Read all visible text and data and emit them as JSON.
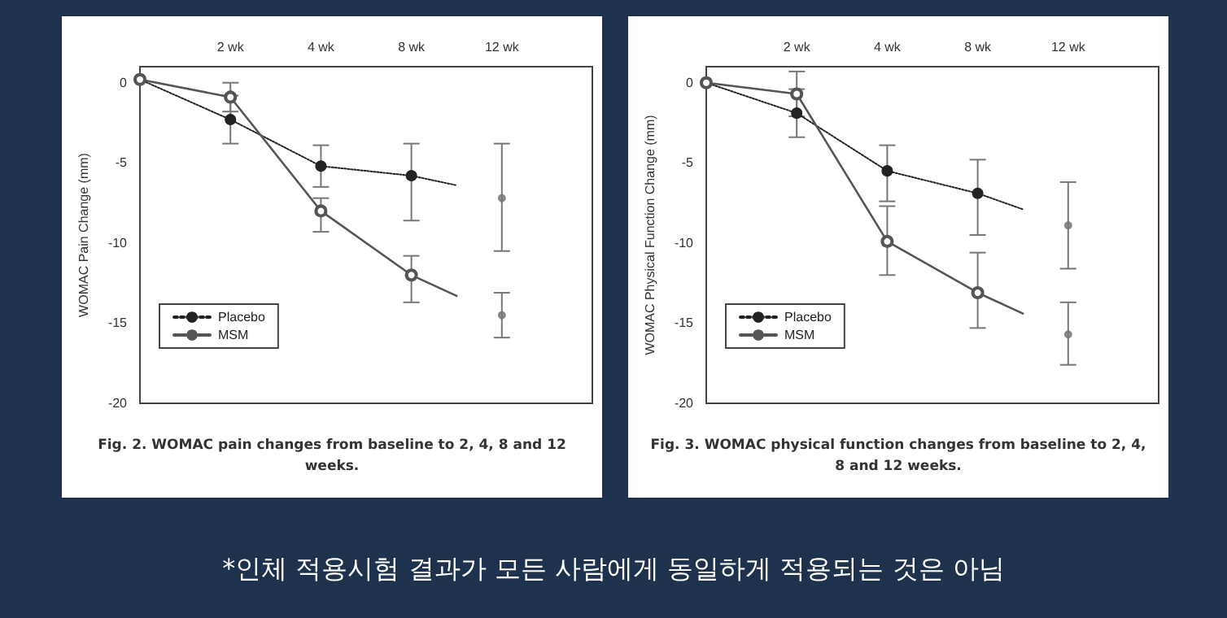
{
  "chart_data": [
    {
      "type": "line",
      "title": "Fig. 2. WOMAC pain changes from baseline to 2, 4, 8 and 12 weeks.",
      "ylabel": "WOMAC Pain Change (mm)",
      "categories": [
        null,
        null,
        "2 wk",
        null,
        "4 wk",
        null,
        "8 wk",
        null,
        "12 wk",
        null,
        null
      ],
      "ylim": [
        -20,
        1
      ],
      "yticks": [
        0,
        -5,
        -10,
        -15,
        -20
      ],
      "grid": false,
      "legend": "bottom left",
      "series": [
        {
          "name": "Placebo",
          "color": "#222222",
          "line_style": "dotted",
          "marker": "circle",
          "values": [
            0.2,
            null,
            -2.3,
            null,
            -5.2,
            null,
            -5.8,
            -6.4,
            null,
            null,
            null
          ],
          "errors": [
            null,
            null,
            [
              -3.8,
              -0.8
            ],
            null,
            [
              -6.5,
              -3.9
            ],
            null,
            [
              -8.6,
              -3.8
            ],
            null,
            null,
            null,
            null
          ]
        },
        {
          "name": "MSM",
          "color": "#555555",
          "line_style": "solid",
          "marker": "open_circle",
          "values": [
            0.2,
            null,
            -0.9,
            null,
            -8.0,
            null,
            -12.0,
            -13.3,
            null,
            null,
            null
          ],
          "errors": [
            null,
            null,
            [
              -1.8,
              0
            ],
            null,
            [
              -9.3,
              -7.2
            ],
            null,
            [
              -13.7,
              -10.8
            ],
            null,
            null,
            null,
            null
          ]
        },
        {
          "type": "scatter",
          "color": "#777777",
          "marker": "circle",
          "values": [
            null,
            null,
            null,
            null,
            null,
            null,
            null,
            null,
            -7.2,
            null,
            null
          ],
          "errors": [
            null,
            null,
            null,
            null,
            null,
            null,
            null,
            null,
            [
              -10.5,
              -3.8
            ],
            null,
            null
          ]
        },
        {
          "type": "scatter",
          "color": "#777777",
          "marker": "circle",
          "values": [
            null,
            null,
            null,
            null,
            null,
            null,
            null,
            null,
            -14.5,
            null,
            null
          ],
          "errors": [
            null,
            null,
            null,
            null,
            null,
            null,
            null,
            null,
            [
              -15.9,
              -13.1
            ],
            null,
            null
          ]
        }
      ]
    },
    {
      "type": "line",
      "title": "Fig. 3. WOMAC physical function changes from baseline to 2, 4, 8 and 12 weeks.",
      "ylabel": "WOMAC Physical Function Change (mm)",
      "categories": [
        null,
        null,
        "2 wk",
        null,
        "4 wk",
        null,
        "8 wk",
        null,
        "12 wk",
        null,
        null
      ],
      "ylim": [
        -20,
        1
      ],
      "yticks": [
        0,
        -5,
        -10,
        -15,
        -20
      ],
      "grid": false,
      "legend": "bottom left",
      "series": [
        {
          "name": "Placebo",
          "color": "#222222",
          "line_style": "dotted",
          "marker": "circle",
          "values": [
            0,
            null,
            -1.9,
            null,
            -5.5,
            null,
            -6.9,
            -7.9,
            null,
            null,
            null
          ],
          "errors": [
            null,
            null,
            [
              -3.4,
              -0.4
            ],
            null,
            [
              -7.4,
              -3.9
            ],
            null,
            [
              -9.5,
              -4.8
            ],
            null,
            null,
            null,
            null
          ]
        },
        {
          "name": "MSM",
          "color": "#555555",
          "line_style": "solid",
          "marker": "open_circle",
          "values": [
            0,
            null,
            -0.7,
            null,
            -9.9,
            null,
            -13.1,
            -14.4,
            null,
            null,
            null
          ],
          "errors": [
            null,
            null,
            [
              -2.1,
              0.7
            ],
            null,
            [
              -12.0,
              -7.7
            ],
            null,
            [
              -15.3,
              -10.6
            ],
            null,
            null,
            null,
            null
          ]
        },
        {
          "type": "scatter",
          "color": "#777777",
          "marker": "circle",
          "values": [
            null,
            null,
            null,
            null,
            null,
            null,
            null,
            null,
            -8.9,
            null,
            null
          ],
          "errors": [
            null,
            null,
            null,
            null,
            null,
            null,
            null,
            null,
            [
              -11.6,
              -6.2
            ],
            null,
            null
          ]
        },
        {
          "type": "scatter",
          "color": "#777777",
          "marker": "circle",
          "values": [
            null,
            null,
            null,
            null,
            null,
            null,
            null,
            null,
            -15.7,
            null,
            null
          ],
          "errors": [
            null,
            null,
            null,
            null,
            null,
            null,
            null,
            null,
            [
              -17.6,
              -13.7
            ],
            null,
            null
          ]
        }
      ]
    },
    {
      "type": "other",
      "annotations": [
        "*인체 적용시험 결과가 모든 사람에게 동일하게 적용되는 것은 아님"
      ]
    }
  ]
}
